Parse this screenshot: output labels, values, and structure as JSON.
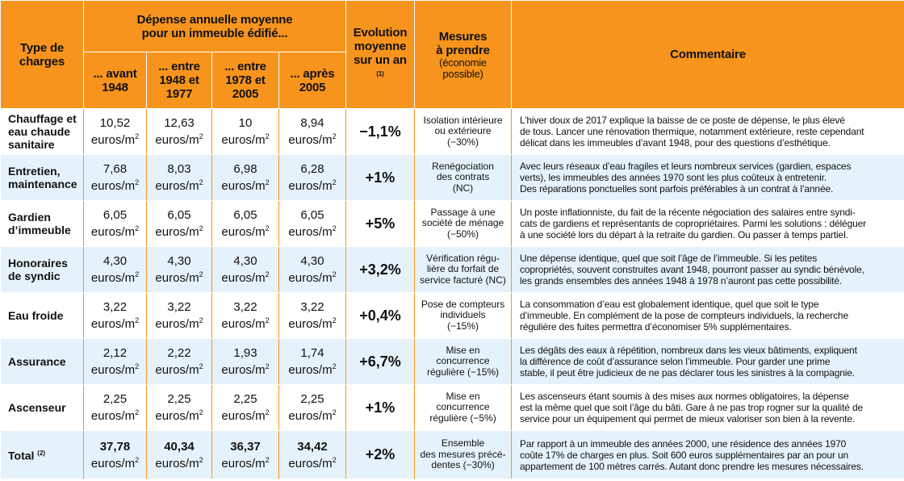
{
  "colors": {
    "header_bg": "#f7941d",
    "alt_row_bg": "#e6f2fb",
    "rule": "#f7941d"
  },
  "header": {
    "type": [
      "Type de",
      "charges"
    ],
    "depense": [
      "Dépense annuelle moyenne",
      "pour un immeuble édifié..."
    ],
    "periods": [
      [
        "... avant",
        "1948"
      ],
      [
        "... entre",
        "1948 et",
        "1977"
      ],
      [
        "... entre",
        "1978 et",
        "2005"
      ],
      [
        "... après",
        "2005"
      ]
    ],
    "evolution": [
      "Evolution",
      "moyenne",
      "sur un an"
    ],
    "evolution_note": "(1)",
    "mesures": [
      "Mesures",
      "à prendre"
    ],
    "mesures_paren": [
      "(économie",
      "possible)"
    ],
    "commentaire": "Commentaire"
  },
  "unit": "euros/m",
  "unit_exp": "2",
  "rows": [
    {
      "type": [
        "Chauffage et",
        "eau chaude",
        "sanitaire"
      ],
      "values": [
        "10,52",
        "12,63",
        "10",
        "8,94"
      ],
      "evolution": "−1,1%",
      "mesure": [
        "Isolation intérieure",
        "ou extérieure",
        "(−30%)"
      ],
      "commentaire": [
        "L’hiver doux de 2017 explique la baisse de ce poste de dépense, le plus élevé",
        "de tous. Lancer une rénovation thermique, notamment extérieure, reste cependant",
        "délicat dans les immeubles d’avant 1948, pour des questions d’esthétique."
      ]
    },
    {
      "type": [
        "Entretien,",
        "maintenance"
      ],
      "values": [
        "7,68",
        "8,03",
        "6,98",
        "6,28"
      ],
      "evolution": "+1%",
      "mesure": [
        "Renégociation",
        "des contrats",
        "(NC)"
      ],
      "commentaire": [
        "Avec leurs réseaux d’eau fragiles et leurs nombreux services (gardien, espaces",
        "verts), les immeubles des années 1970 sont les plus coûteux à entretenir.",
        "Des réparations ponctuelles sont parfois préférables à un contrat à l’année."
      ]
    },
    {
      "type": [
        "Gardien",
        "d’immeuble"
      ],
      "values": [
        "6,05",
        "6,05",
        "6,05",
        "6,05"
      ],
      "evolution": "+5%",
      "mesure": [
        "Passage à une",
        "société de ménage",
        "(−50%)"
      ],
      "commentaire": [
        "Un poste inflationniste, du fait de la récente négociation des salaires entre syndi-",
        "cats de gardiens et représentants de copropriétaires. Parmi les solutions : déléguer",
        "à une société lors du départ à la retraite du gardien. Ou passer à temps partiel."
      ]
    },
    {
      "type": [
        "Honoraires",
        "de syndic"
      ],
      "values": [
        "4,30",
        "4,30",
        "4,30",
        "4,30"
      ],
      "evolution": "+3,2%",
      "mesure": [
        "Vérification régu-",
        "lière du forfait de",
        "service facturé (NC)"
      ],
      "commentaire": [
        "Une dépense identique, quel que soit l’âge de l’immeuble. Si les petites",
        "copropriétés, souvent construites avant 1948, pourront passer au syndic bénévole,",
        "les grands ensembles des années 1948 à 1978 n’auront pas cette possibilité."
      ]
    },
    {
      "type": [
        "Eau froide"
      ],
      "values": [
        "3,22",
        "3,22",
        "3,22",
        "3,22"
      ],
      "evolution": "+0,4%",
      "mesure": [
        "Pose de compteurs",
        "individuels",
        "(−15%)"
      ],
      "commentaire": [
        "La consommation d’eau est globalement identique, quel que soit le type",
        "d’immeuble. En complément de la pose de compteurs individuels, la recherche",
        "régulière des fuites permettra d’économiser 5% supplémentaires."
      ]
    },
    {
      "type": [
        "Assurance"
      ],
      "values": [
        "2,12",
        "2,22",
        "1,93",
        "1,74"
      ],
      "evolution": "+6,7%",
      "mesure": [
        "Mise en",
        "concurrence",
        "régulière (−15%)"
      ],
      "commentaire": [
        "Les dégâts des eaux à répétition, nombreux dans les vieux bâtiments, expliquent",
        "la différence de coût d’assurance selon l’immeuble. Pour garder une prime",
        "stable, il peut être judicieux de ne pas déclarer tous les sinistres à la compagnie."
      ]
    },
    {
      "type": [
        "Ascenseur"
      ],
      "values": [
        "2,25",
        "2,25",
        "2,25",
        "2,25"
      ],
      "evolution": "+1%",
      "mesure": [
        "Mise en",
        "concurrence",
        "régulière (−5%)"
      ],
      "commentaire": [
        "Les ascenseurs étant soumis à des mises aux normes obligatoires, la dépense",
        "est la même quel que soit l’âge du bâti. Gare à ne pas trop rogner sur la qualité de",
        "service pour un équipement qui permet de mieux valoriser son bien à la revente."
      ]
    },
    {
      "type": [
        "Total"
      ],
      "type_note": "(2)",
      "values": [
        "37,78",
        "40,34",
        "36,37",
        "34,42"
      ],
      "evolution": "+2%",
      "mesure": [
        "Ensemble",
        "des mesures précé-",
        "dentes (−30%)"
      ],
      "commentaire": [
        "Par rapport à un immeuble des années 2000, une résidence des années 1970",
        "coûte 17% de charges en plus. Soit 600 euros supplémentaires par an pour un",
        "appartement de 100 mètres carrés. Autant donc prendre les mesures nécessaires."
      ]
    }
  ]
}
